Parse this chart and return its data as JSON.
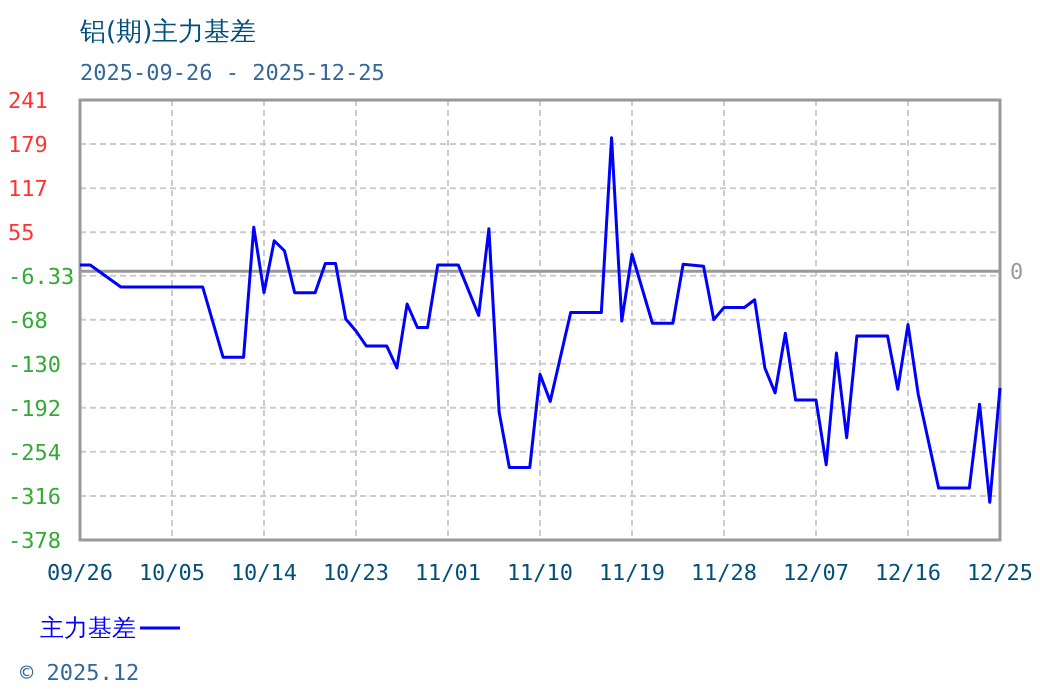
{
  "chart_data": {
    "type": "line",
    "title": "铝(期)主力基差",
    "subtitle": "2025-09-26 - 2025-12-25",
    "x": [
      "2025-09-26",
      "2025-09-27",
      "2025-09-30",
      "2025-10-08",
      "2025-10-10",
      "2025-10-12",
      "2025-10-13",
      "2025-10-14",
      "2025-10-15",
      "2025-10-16",
      "2025-10-17",
      "2025-10-19",
      "2025-10-20",
      "2025-10-21",
      "2025-10-22",
      "2025-10-23",
      "2025-10-24",
      "2025-10-26",
      "2025-10-27",
      "2025-10-28",
      "2025-10-29",
      "2025-10-30",
      "2025-10-31",
      "2025-11-02",
      "2025-11-04",
      "2025-11-05",
      "2025-11-06",
      "2025-11-07",
      "2025-11-09",
      "2025-11-10",
      "2025-11-11",
      "2025-11-13",
      "2025-11-16",
      "2025-11-17",
      "2025-11-18",
      "2025-11-19",
      "2025-11-21",
      "2025-11-23",
      "2025-11-24",
      "2025-11-26",
      "2025-11-27",
      "2025-11-28",
      "2025-11-30",
      "2025-12-01",
      "2025-12-02",
      "2025-12-03",
      "2025-12-04",
      "2025-12-05",
      "2025-12-07",
      "2025-12-08",
      "2025-12-09",
      "2025-12-10",
      "2025-12-11",
      "2025-12-14",
      "2025-12-15",
      "2025-12-16",
      "2025-12-17",
      "2025-12-19",
      "2025-12-22",
      "2025-12-23",
      "2025-12-24",
      "2025-12-25"
    ],
    "series": [
      {
        "name": "主力基差",
        "color": "#0000ff",
        "values": [
          9,
          9,
          -22,
          -22,
          -121,
          -121,
          62,
          -30,
          43,
          29,
          -30,
          -30,
          11,
          11,
          -67,
          -84,
          -105,
          -105,
          -136,
          -46,
          -79,
          -79,
          9,
          9,
          -62,
          60,
          -198,
          -276,
          -276,
          -145,
          -183,
          -58,
          -58,
          188,
          -70,
          24,
          -73,
          -73,
          10,
          7,
          -68,
          -51,
          -51,
          -40,
          -136,
          -171,
          -87,
          -181,
          -181,
          -272,
          -115,
          -234,
          -91,
          -91,
          -166,
          -75,
          -173,
          -305,
          -305,
          -187,
          -325,
          -164
        ]
      }
    ],
    "xlim": [
      "2025-09-26",
      "2025-12-25"
    ],
    "xticks": [
      {
        "value": "2025-09-26",
        "label": "09/26"
      },
      {
        "value": "2025-10-05",
        "label": "10/05"
      },
      {
        "value": "2025-10-14",
        "label": "10/14"
      },
      {
        "value": "2025-10-23",
        "label": "10/23"
      },
      {
        "value": "2025-11-01",
        "label": "11/01"
      },
      {
        "value": "2025-11-10",
        "label": "11/10"
      },
      {
        "value": "2025-11-19",
        "label": "11/19"
      },
      {
        "value": "2025-11-28",
        "label": "11/28"
      },
      {
        "value": "2025-12-07",
        "label": "12/07"
      },
      {
        "value": "2025-12-16",
        "label": "12/16"
      },
      {
        "value": "2025-12-25",
        "label": "12/25"
      }
    ],
    "ylim": [
      -378,
      241
    ],
    "yticks": [
      241,
      179,
      117,
      55,
      -6.33,
      -68,
      -130,
      -192,
      -254,
      -316,
      -378
    ],
    "ref_lines": [
      {
        "axis": "y",
        "value": 0,
        "label": "0",
        "color": "#999999"
      }
    ],
    "grid": true,
    "legend": "bottom",
    "marker": "none",
    "line_style": "solid",
    "annotations": [
      "© 2025.12"
    ]
  }
}
